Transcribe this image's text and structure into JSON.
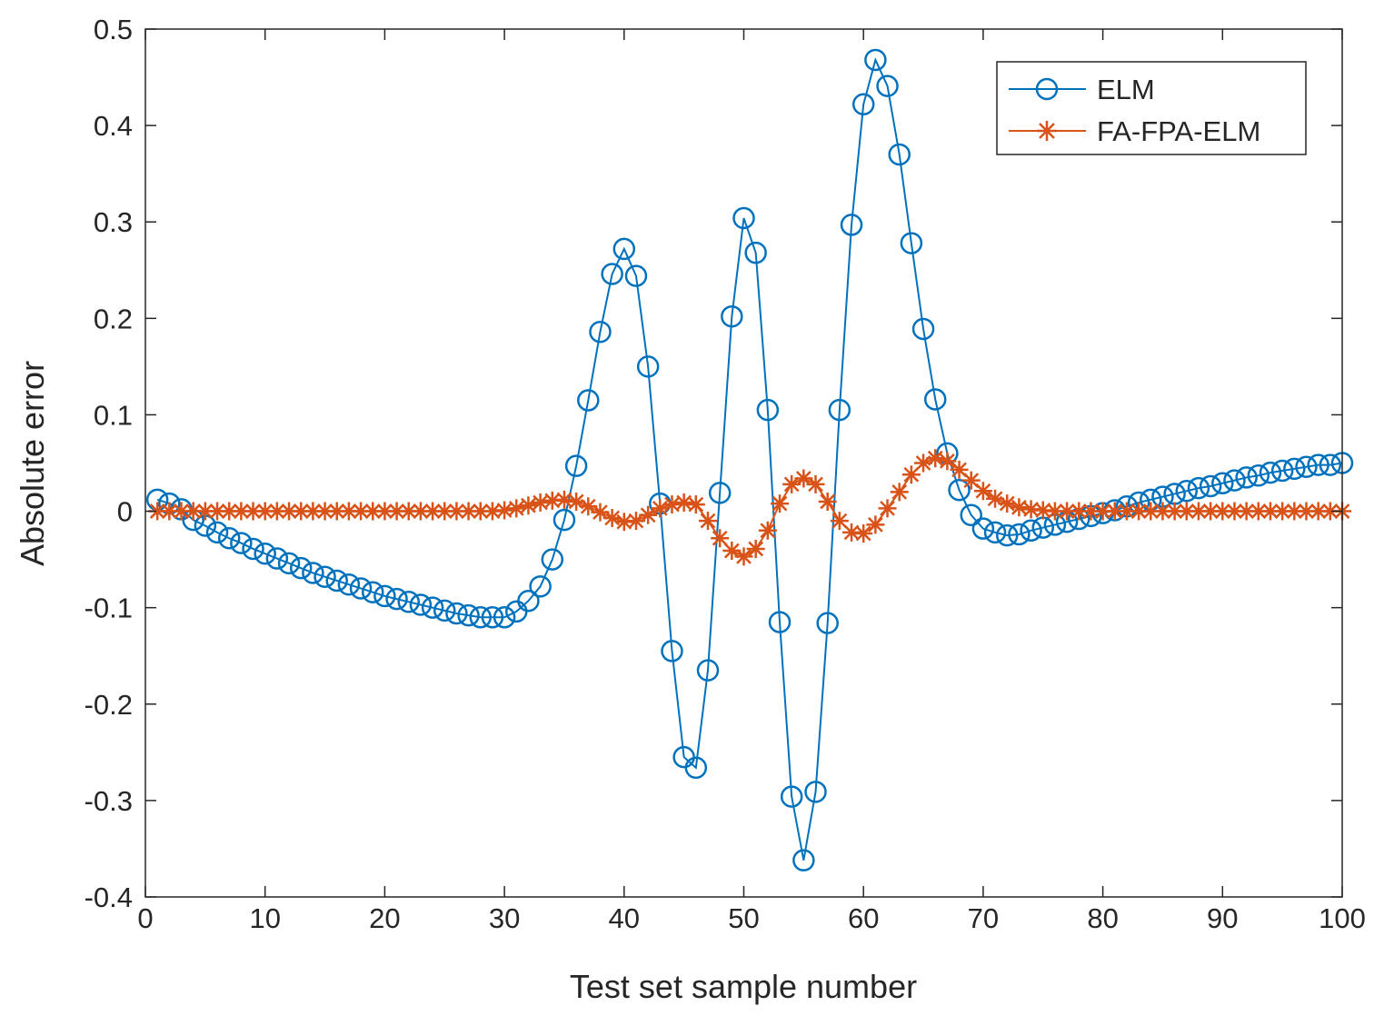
{
  "chart_data": {
    "type": "line",
    "title": "",
    "xlabel": "Test set sample number",
    "ylabel": "Absolute error",
    "xlim": [
      0,
      100
    ],
    "ylim": [
      -0.4,
      0.5
    ],
    "xticks": [
      0,
      10,
      20,
      30,
      40,
      50,
      60,
      70,
      80,
      90,
      100
    ],
    "xtick_labels": [
      "0",
      "10",
      "20",
      "30",
      "40",
      "50",
      "60",
      "70",
      "80",
      "90",
      "100"
    ],
    "yticks": [
      -0.4,
      -0.3,
      -0.2,
      -0.1,
      0,
      0.1,
      0.2,
      0.3,
      0.4,
      0.5
    ],
    "ytick_labels": [
      "-0.4",
      "-0.3",
      "-0.2",
      "-0.1",
      "0",
      "0.1",
      "0.2",
      "0.3",
      "0.4",
      "0.5"
    ],
    "grid": false,
    "legend_position": "top-right",
    "x": [
      1,
      2,
      3,
      4,
      5,
      6,
      7,
      8,
      9,
      10,
      11,
      12,
      13,
      14,
      15,
      16,
      17,
      18,
      19,
      20,
      21,
      22,
      23,
      24,
      25,
      26,
      27,
      28,
      29,
      30,
      31,
      32,
      33,
      34,
      35,
      36,
      37,
      38,
      39,
      40,
      41,
      42,
      43,
      44,
      45,
      46,
      47,
      48,
      49,
      50,
      51,
      52,
      53,
      54,
      55,
      56,
      57,
      58,
      59,
      60,
      61,
      62,
      63,
      64,
      65,
      66,
      67,
      68,
      69,
      70,
      71,
      72,
      73,
      74,
      75,
      76,
      77,
      78,
      79,
      80,
      81,
      82,
      83,
      84,
      85,
      86,
      87,
      88,
      89,
      90,
      91,
      92,
      93,
      94,
      95,
      96,
      97,
      98,
      99,
      100
    ],
    "series": [
      {
        "name": "ELM",
        "color": "#0072BD",
        "marker": "circle",
        "values": [
          0.012,
          0.008,
          0.002,
          -0.009,
          -0.015,
          -0.022,
          -0.028,
          -0.033,
          -0.039,
          -0.044,
          -0.049,
          -0.054,
          -0.059,
          -0.064,
          -0.068,
          -0.072,
          -0.076,
          -0.08,
          -0.084,
          -0.088,
          -0.091,
          -0.094,
          -0.097,
          -0.1,
          -0.103,
          -0.106,
          -0.108,
          -0.11,
          -0.11,
          -0.11,
          -0.104,
          -0.093,
          -0.078,
          -0.05,
          -0.009,
          0.047,
          0.115,
          0.186,
          0.246,
          0.272,
          0.244,
          0.15,
          0.008,
          -0.145,
          -0.255,
          -0.266,
          -0.165,
          0.019,
          0.202,
          0.304,
          0.268,
          0.105,
          -0.115,
          -0.296,
          -0.362,
          -0.291,
          -0.116,
          0.105,
          0.297,
          0.422,
          0.468,
          0.441,
          0.37,
          0.278,
          0.189,
          0.116,
          0.06,
          0.022,
          -0.004,
          -0.018,
          -0.022,
          -0.025,
          -0.024,
          -0.02,
          -0.017,
          -0.014,
          -0.011,
          -0.008,
          -0.005,
          -0.002,
          0.001,
          0.005,
          0.009,
          0.012,
          0.015,
          0.018,
          0.021,
          0.024,
          0.026,
          0.029,
          0.032,
          0.035,
          0.037,
          0.04,
          0.042,
          0.044,
          0.046,
          0.048,
          0.048,
          0.05
        ]
      },
      {
        "name": "FA-FPA-ELM",
        "color": "#D95319",
        "marker": "star",
        "values": [
          0,
          0,
          0,
          0,
          0,
          0,
          0,
          0,
          0,
          0,
          0,
          0,
          0,
          0,
          0,
          0,
          0,
          0,
          0,
          0,
          0,
          0,
          0,
          0,
          0,
          0,
          0,
          0,
          0,
          0.001,
          0.003,
          0.006,
          0.009,
          0.011,
          0.012,
          0.01,
          0.005,
          -0.001,
          -0.007,
          -0.011,
          -0.01,
          -0.004,
          0.003,
          0.007,
          0.009,
          0.007,
          -0.01,
          -0.028,
          -0.041,
          -0.047,
          -0.039,
          -0.02,
          0.008,
          0.028,
          0.034,
          0.028,
          0.01,
          -0.01,
          -0.022,
          -0.023,
          -0.014,
          0.003,
          0.02,
          0.038,
          0.05,
          0.055,
          0.052,
          0.043,
          0.032,
          0.021,
          0.013,
          0.008,
          0.004,
          0.002,
          0.001,
          0,
          0,
          0,
          0,
          0,
          0,
          0,
          0,
          0,
          0,
          0,
          0,
          0,
          0,
          0,
          0,
          0,
          0,
          0,
          0,
          0,
          0,
          0,
          0,
          0
        ]
      }
    ]
  }
}
